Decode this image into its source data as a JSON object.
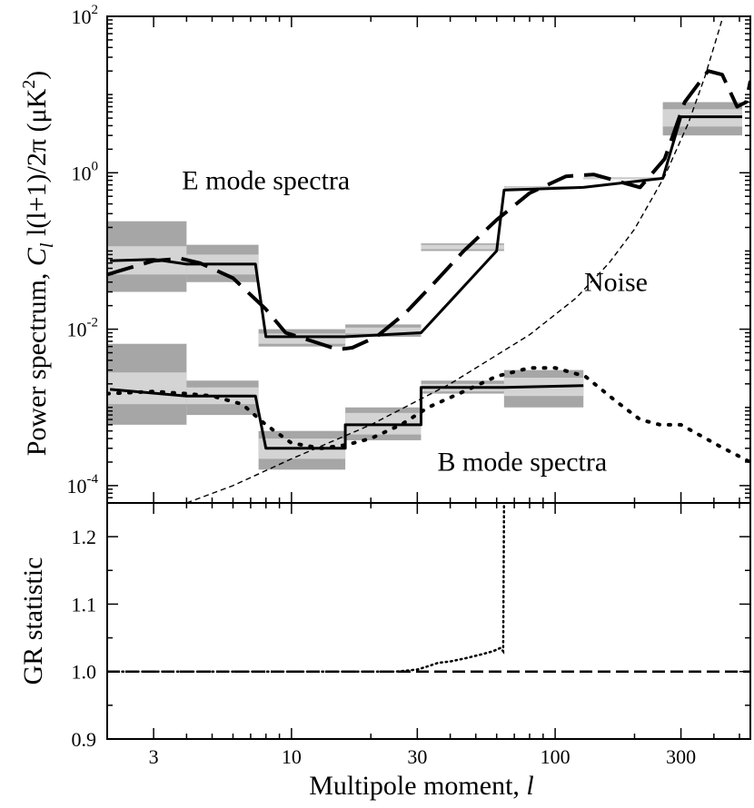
{
  "chart_data": [
    {
      "type": "line",
      "panel": "top",
      "ylabel_text": "Power spectrum, ",
      "ylabel_math": "C",
      "ylabel_sub": "l",
      "ylabel_rest": " l(l+1)/2π (μK",
      "ylabel_sup": "2",
      "ylabel_end": ")",
      "x_scale": "log",
      "y_scale": "log",
      "xlim": [
        2,
        550
      ],
      "ylim": [
        6e-05,
        100
      ],
      "yticks": [
        {
          "mant": "10",
          "exp": "2",
          "value": 100
        },
        {
          "mant": "10",
          "exp": "0",
          "value": 1
        },
        {
          "mant": "10",
          "exp": "-2",
          "value": 0.01
        },
        {
          "mant": "10",
          "exp": "-4",
          "value": 0.0001
        }
      ],
      "annotations": [
        {
          "text": "E mode spectra",
          "x": 8,
          "y": 1
        },
        {
          "text": "Noise",
          "x": 170,
          "y": 0.05
        },
        {
          "text": "B mode spectra",
          "x": 75,
          "y": 0.00025
        }
      ],
      "bands": [
        {
          "name": "E",
          "bins": [
            {
              "lo": 2,
              "hi": 4,
              "c": 0.075,
              "i68": [
                0.05,
                0.115
              ],
              "i95": [
                0.03,
                0.24
              ]
            },
            {
              "lo": 4,
              "hi": 7.5,
              "c": 0.065,
              "i68": [
                0.05,
                0.09
              ],
              "i95": [
                0.04,
                0.12
              ]
            },
            {
              "lo": 7.5,
              "hi": 16,
              "c": 0.0075,
              "i68": [
                0.0065,
                0.0088
              ],
              "i95": [
                0.006,
                0.01
              ]
            },
            {
              "lo": 16,
              "hi": 31,
              "c": 0.0095,
              "i68": [
                0.0088,
                0.0105
              ],
              "i95": [
                0.008,
                0.0115
              ]
            },
            {
              "lo": 31,
              "hi": 64,
              "c": 0.11,
              "i68": [
                0.105,
                0.12
              ],
              "i95": [
                0.1,
                0.125
              ]
            },
            {
              "lo": 64,
              "hi": 128,
              "c": 0.65,
              "i68": [
                0.64,
                0.66
              ],
              "i95": [
                0.63,
                0.67
              ]
            },
            {
              "lo": 128,
              "hi": 256,
              "c": 0.85,
              "i68": [
                0.84,
                0.86
              ],
              "i95": [
                0.83,
                0.87
              ]
            },
            {
              "lo": 256,
              "hi": 512,
              "c": 5.2,
              "i68": [
                3.9,
                6.5
              ],
              "i95": [
                3.0,
                8.0
              ]
            }
          ]
        },
        {
          "name": "B",
          "bins": [
            {
              "lo": 2,
              "hi": 4,
              "c": 0.0017,
              "i68": [
                0.0011,
                0.0028
              ],
              "i95": [
                0.0006,
                0.0065
              ]
            },
            {
              "lo": 4,
              "hi": 7.5,
              "c": 0.0014,
              "i68": [
                0.0011,
                0.0018
              ],
              "i95": [
                0.0008,
                0.0022
              ]
            },
            {
              "lo": 7.5,
              "hi": 16,
              "c": 0.0003,
              "i68": [
                0.00022,
                0.0004
              ],
              "i95": [
                0.00016,
                0.0005
              ]
            },
            {
              "lo": 16,
              "hi": 31,
              "c": 0.0006,
              "i68": [
                0.00045,
                0.00085
              ],
              "i95": [
                0.00038,
                0.001
              ]
            },
            {
              "lo": 31,
              "hi": 64,
              "c": 0.0018,
              "i68": [
                0.0016,
                0.002
              ],
              "i95": [
                0.0015,
                0.0022
              ]
            },
            {
              "lo": 64,
              "hi": 128,
              "c": 0.0019,
              "i68": [
                0.0014,
                0.0024
              ],
              "i95": [
                0.001,
                0.003
              ]
            }
          ]
        }
      ],
      "series": [
        {
          "role": "E-estimate",
          "style": "solid",
          "points": [
            [
              2.05,
              0.075
            ],
            [
              3,
              0.078
            ],
            [
              4,
              0.068
            ],
            [
              7.3,
              0.068
            ],
            [
              8,
              0.008
            ],
            [
              16,
              0.008
            ],
            [
              31,
              0.009
            ],
            [
              60,
              0.1
            ],
            [
              64,
              0.6
            ],
            [
              128,
              0.65
            ],
            [
              256,
              0.85
            ],
            [
              300,
              5.2
            ],
            [
              512,
              5.2
            ]
          ]
        },
        {
          "role": "E-model",
          "style": "dashed",
          "points": [
            [
              2,
              0.05
            ],
            [
              3,
              0.075
            ],
            [
              3.8,
              0.08
            ],
            [
              4.5,
              0.07
            ],
            [
              6,
              0.045
            ],
            [
              8,
              0.018
            ],
            [
              9.5,
              0.009
            ],
            [
              12,
              0.007
            ],
            [
              15,
              0.0055
            ],
            [
              17,
              0.0058
            ],
            [
              21,
              0.008
            ],
            [
              27,
              0.016
            ],
            [
              35,
              0.04
            ],
            [
              45,
              0.1
            ],
            [
              60,
              0.25
            ],
            [
              80,
              0.55
            ],
            [
              110,
              0.9
            ],
            [
              140,
              0.95
            ],
            [
              180,
              0.75
            ],
            [
              210,
              0.65
            ],
            [
              260,
              1.5
            ],
            [
              310,
              8
            ],
            [
              380,
              20
            ],
            [
              430,
              18
            ],
            [
              490,
              7
            ],
            [
              530,
              8
            ],
            [
              550,
              15
            ]
          ]
        },
        {
          "role": "B-estimate",
          "style": "solid",
          "points": [
            [
              2.05,
              0.0017
            ],
            [
              4,
              0.0014
            ],
            [
              7.3,
              0.0014
            ],
            [
              8,
              0.0003
            ],
            [
              16,
              0.0003
            ],
            [
              16,
              0.0006
            ],
            [
              31,
              0.0006
            ],
            [
              31,
              0.0018
            ],
            [
              64,
              0.0018
            ],
            [
              128,
              0.0019
            ]
          ]
        },
        {
          "role": "B-model",
          "style": "dotted",
          "points": [
            [
              2,
              0.0015
            ],
            [
              3,
              0.0016
            ],
            [
              4,
              0.0015
            ],
            [
              5,
              0.0014
            ],
            [
              6.5,
              0.0011
            ],
            [
              8,
              0.0006
            ],
            [
              10,
              0.00035
            ],
            [
              13,
              0.0003
            ],
            [
              16,
              0.00033
            ],
            [
              20,
              0.0004
            ],
            [
              26,
              0.0006
            ],
            [
              33,
              0.001
            ],
            [
              45,
              0.0016
            ],
            [
              60,
              0.0025
            ],
            [
              80,
              0.0032
            ],
            [
              100,
              0.0032
            ],
            [
              130,
              0.0025
            ],
            [
              170,
              0.0012
            ],
            [
              210,
              0.0007
            ],
            [
              250,
              0.0006
            ],
            [
              300,
              0.0006
            ],
            [
              350,
              0.00045
            ],
            [
              420,
              0.00032
            ],
            [
              550,
              0.0002
            ]
          ]
        },
        {
          "role": "noise",
          "style": "thin-dashed",
          "points": [
            [
              4,
              6e-05
            ],
            [
              6,
              0.0001
            ],
            [
              10,
              0.00022
            ],
            [
              20,
              0.0006
            ],
            [
              40,
              0.002
            ],
            [
              80,
              0.0085
            ],
            [
              120,
              0.025
            ],
            [
              160,
              0.07
            ],
            [
              200,
              0.19
            ],
            [
              260,
              0.9
            ],
            [
              320,
              4.3
            ],
            [
              370,
              17
            ],
            [
              420,
              70
            ],
            [
              440,
              120
            ]
          ]
        }
      ]
    },
    {
      "type": "line",
      "panel": "bottom",
      "ylabel": "GR statistic",
      "xlabel_text": "Multipole moment, ",
      "xlabel_math": "l",
      "x_scale": "log",
      "xlim": [
        2,
        550
      ],
      "ylim": [
        0.9,
        1.25
      ],
      "xticks": [
        {
          "label": "3",
          "value": 3
        },
        {
          "label": "10",
          "value": 10
        },
        {
          "label": "30",
          "value": 30
        },
        {
          "label": "100",
          "value": 100
        },
        {
          "label": "300",
          "value": 300
        }
      ],
      "yticks": [
        {
          "label": "0.9",
          "value": 0.9
        },
        {
          "label": "1.0",
          "value": 1.0
        },
        {
          "label": "1.1",
          "value": 1.1
        },
        {
          "label": "1.2",
          "value": 1.2
        }
      ],
      "series": [
        {
          "role": "E",
          "style": "dashed",
          "points": [
            [
              2,
              1.0
            ],
            [
              550,
              1.0
            ]
          ]
        },
        {
          "role": "B",
          "style": "dotted",
          "points": [
            [
              2,
              1.0
            ],
            [
              25,
              1.0
            ],
            [
              30,
              1.003
            ],
            [
              33,
              1.008
            ],
            [
              36,
              1.013
            ],
            [
              40,
              1.015
            ],
            [
              46,
              1.02
            ],
            [
              52,
              1.025
            ],
            [
              58,
              1.03
            ],
            [
              62,
              1.035
            ],
            [
              63.5,
              1.03
            ],
            [
              64,
              1.26
            ]
          ]
        }
      ]
    }
  ]
}
